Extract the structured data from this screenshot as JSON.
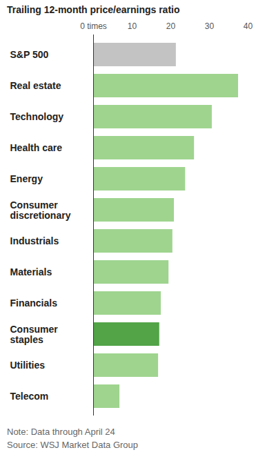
{
  "chart_data": {
    "type": "bar",
    "orientation": "horizontal",
    "title": "Trailing 12-month price/earnings ratio",
    "annotations": [
      "Note: Data through April 24",
      "Source: WSJ Market Data Group"
    ],
    "categories": [
      "S&P 500",
      "Real estate",
      "Technology",
      "Health care",
      "Energy",
      "Consumer discretionary",
      "Industrials",
      "Materials",
      "Financials",
      "Consumer staples",
      "Utilities",
      "Telecom"
    ],
    "values": [
      21.4,
      37.5,
      30.7,
      26.1,
      23.8,
      20.9,
      20.5,
      19.5,
      17.5,
      17.1,
      16.8,
      6.8
    ],
    "colors": [
      "#c3c3c3",
      "#9fd48f",
      "#9fd48f",
      "#9fd48f",
      "#9fd48f",
      "#9fd48f",
      "#9fd48f",
      "#9fd48f",
      "#9fd48f",
      "#52a447",
      "#9fd48f",
      "#9fd48f"
    ],
    "xlim": [
      0,
      40
    ],
    "xticks": [
      {
        "value": 0,
        "label": "0 times"
      },
      10,
      20,
      30,
      40
    ],
    "grid": false
  }
}
